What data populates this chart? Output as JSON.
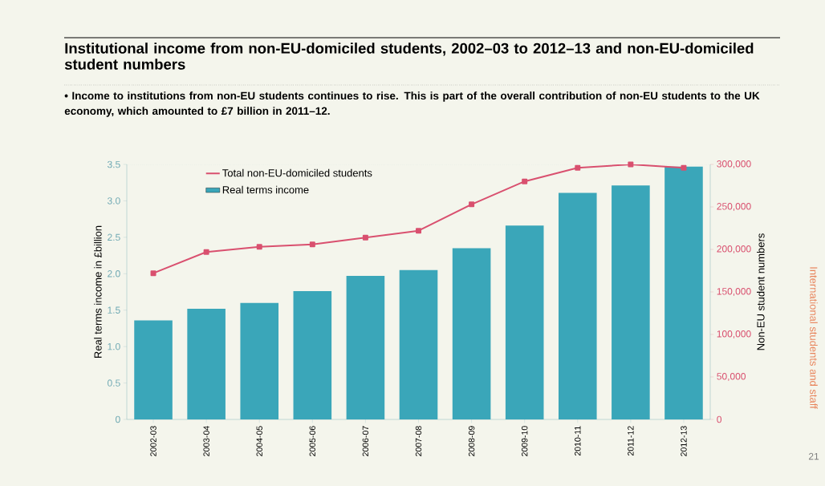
{
  "chart_data": {
    "type": "bar",
    "title": "Institutional income from non-EU-domiciled students, 2002–03 to 2012–13 and non-EU-domiciled student numbers",
    "subtitle": "• Income to institutions from non-EU students continues to rise. This is part of the overall contribution of non-EU students to the UK economy, which amounted to £7 billion in 2011–12.",
    "ylabel": "Real terms income in £billion",
    "y2label": "Non-EU student numbers",
    "categories": [
      "2002-03",
      "2003-04",
      "2004-05",
      "2005-06",
      "2006-07",
      "2007-08",
      "2008-09",
      "2009-10",
      "2010-11",
      "2011-12",
      "2012-13"
    ],
    "series": [
      {
        "name": "Total non-EU-domiciled students",
        "type": "line",
        "axis": "y2",
        "color": "#d9506f",
        "marker": "square",
        "values": [
          172000,
          197000,
          203000,
          206000,
          214000,
          222000,
          253000,
          280000,
          296000,
          300000,
          296000
        ]
      },
      {
        "name": "Real terms income",
        "color": "#3aa6b9",
        "values": [
          1.36,
          1.52,
          1.6,
          1.76,
          1.97,
          2.05,
          2.35,
          2.66,
          3.11,
          3.21,
          3.47
        ]
      }
    ],
    "ylim": [
      0,
      3.5
    ],
    "yticks": [
      0,
      0.5,
      {
        "value": 1,
        "label": "1.0"
      },
      1.5,
      {
        "value": 2,
        "label": "2.0"
      },
      2.5,
      {
        "value": 3,
        "label": "3.0"
      },
      3.5
    ],
    "y2lim": [
      0,
      300000
    ],
    "y2ticks": [
      0,
      {
        "value": 50000,
        "label": "50,000"
      },
      {
        "value": 100000,
        "label": "100,000"
      },
      {
        "value": 150000,
        "label": "150,000"
      },
      {
        "value": 200000,
        "label": "200,000"
      },
      {
        "value": 250000,
        "label": "250,000"
      },
      {
        "value": 300000,
        "label": "300,000"
      }
    ],
    "legend": "top left",
    "annotations": [
      "International students and staff",
      "21"
    ]
  }
}
